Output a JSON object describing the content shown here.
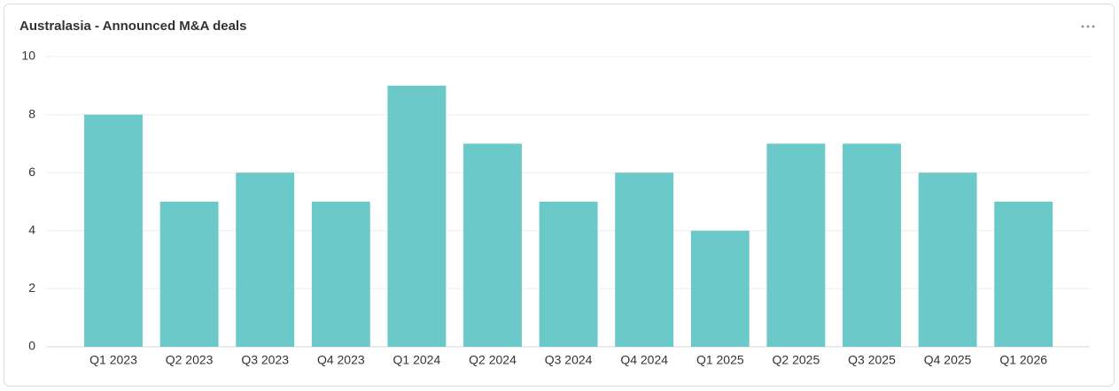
{
  "chart_data": {
    "type": "bar",
    "title": "Australasia - Announced M&A deals",
    "categories": [
      "Q1 2023",
      "Q2 2023",
      "Q3 2023",
      "Q4 2023",
      "Q1 2024",
      "Q2 2024",
      "Q3 2024",
      "Q4 2024",
      "Q1 2025",
      "Q2 2025",
      "Q3 2025",
      "Q4 2025",
      "Q1 2026"
    ],
    "values": [
      8,
      5,
      6,
      5,
      9,
      7,
      5,
      6,
      4,
      7,
      7,
      6,
      5
    ],
    "color": "#6cc9c9",
    "ylim": [
      0,
      10
    ],
    "yticks": [
      0,
      2,
      4,
      6,
      8,
      10
    ],
    "grid": true
  }
}
